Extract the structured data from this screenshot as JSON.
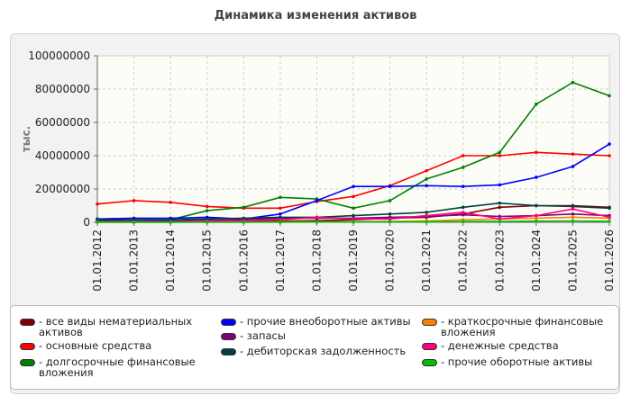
{
  "chart_data": {
    "type": "line",
    "title": "Динамика изменения активов",
    "ylabel": "тыс.",
    "xlabel": "",
    "ylim": [
      0,
      100000000
    ],
    "yticks": [
      "0",
      "20000000",
      "40000000",
      "60000000",
      "80000000",
      "100000000"
    ],
    "ytick_values": [
      0,
      20000000,
      40000000,
      60000000,
      80000000,
      100000000
    ],
    "categories": [
      "01.01.2012",
      "01.01.2013",
      "01.01.2014",
      "01.01.2015",
      "01.01.2016",
      "01.01.2017",
      "01.01.2018",
      "01.01.2019",
      "01.01.2020",
      "01.01.2021",
      "01.01.2022",
      "01.01.2023",
      "01.01.2024",
      "01.01.2025",
      "01.01.2026"
    ],
    "grid": true,
    "legend_position": "bottom",
    "series": [
      {
        "name": "- все виды нематериальных активов",
        "color": "#800000",
        "values": [
          300000,
          300000,
          300000,
          400000,
          500000,
          700000,
          1000000,
          1500000,
          2500000,
          3000000,
          5000000,
          9000000,
          10000000,
          10000000,
          9000000
        ]
      },
      {
        "name": "- основные средства",
        "color": "#ff0000",
        "values": [
          11000000,
          13000000,
          12000000,
          9500000,
          8500000,
          8500000,
          12500000,
          15500000,
          22000000,
          31000000,
          40000000,
          40000000,
          42000000,
          41000000,
          40000000
        ]
      },
      {
        "name": "- долгосрочные финансовые вложения",
        "color": "#008000",
        "values": [
          1000000,
          1500000,
          1500000,
          7000000,
          9000000,
          15000000,
          14000000,
          8500000,
          13000000,
          26000000,
          33000000,
          42000000,
          71000000,
          84000000,
          76000000
        ]
      },
      {
        "name": "- прочие внеоборотные активы",
        "color": "#0000ff",
        "values": [
          2000000,
          2500000,
          2500000,
          3000000,
          2000000,
          5000000,
          13000000,
          21500000,
          21500000,
          22000000,
          21500000,
          22500000,
          27000000,
          33500000,
          47000000
        ]
      },
      {
        "name": "- запасы",
        "color": "#800080",
        "values": [
          500000,
          600000,
          700000,
          1200000,
          1600000,
          2500000,
          2500000,
          2500000,
          3000000,
          3500000,
          4500000,
          3500000,
          4000000,
          5000000,
          4000000
        ]
      },
      {
        "name": "- дебиторская задолженность",
        "color": "#004040",
        "values": [
          1500000,
          1500000,
          1500000,
          2000000,
          2500000,
          3000000,
          3000000,
          4000000,
          5000000,
          6000000,
          9000000,
          11500000,
          10000000,
          9500000,
          8500000
        ]
      },
      {
        "name": "- краткосрочные финансовые вложения",
        "color": "#ff8000",
        "values": [
          100000,
          100000,
          100000,
          100000,
          100000,
          200000,
          300000,
          400000,
          500000,
          800000,
          1500000,
          2000000,
          2500000,
          3000000,
          2500000
        ]
      },
      {
        "name": "- денежные средства",
        "color": "#ff0080",
        "values": [
          300000,
          300000,
          400000,
          800000,
          1000000,
          1500000,
          3000000,
          2000000,
          2000000,
          4000000,
          6000000,
          2000000,
          4000000,
          8000000,
          3000000
        ]
      },
      {
        "name": "- прочие оборотные активы",
        "color": "#00c000",
        "values": [
          50000,
          50000,
          50000,
          100000,
          100000,
          100000,
          200000,
          200000,
          300000,
          300000,
          500000,
          500000,
          700000,
          800000,
          600000
        ]
      }
    ]
  }
}
